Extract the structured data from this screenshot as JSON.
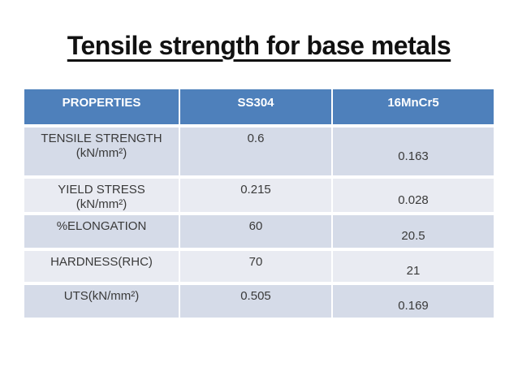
{
  "title": "Tensile strength for base metals",
  "table": {
    "headers": [
      "PROPERTIES",
      "SS304",
      "16MnCr5"
    ],
    "rows": [
      {
        "property": "TENSILE STRENGTH (kN/mm²)",
        "ss304": "0.6",
        "mncr5": "0.163"
      },
      {
        "property": "YIELD STRESS (kN/mm²)",
        "ss304": "0.215",
        "mncr5": "0.028"
      },
      {
        "property": "%ELONGATION",
        "ss304": "60",
        "mncr5": "20.5"
      },
      {
        "property": "HARDNESS(RHC)",
        "ss304": "70",
        "mncr5": "21"
      },
      {
        "property": "UTS(kN/mm²)",
        "ss304": "0.505",
        "mncr5": "0.169"
      }
    ]
  },
  "colors": {
    "title_text": "#111111",
    "header_bg": "#4E80BB",
    "header_text": "#FFFFFF",
    "band_dark": "#D5DBE8",
    "band_light": "#E9EBF2",
    "body_text": "#3A3A3A"
  }
}
